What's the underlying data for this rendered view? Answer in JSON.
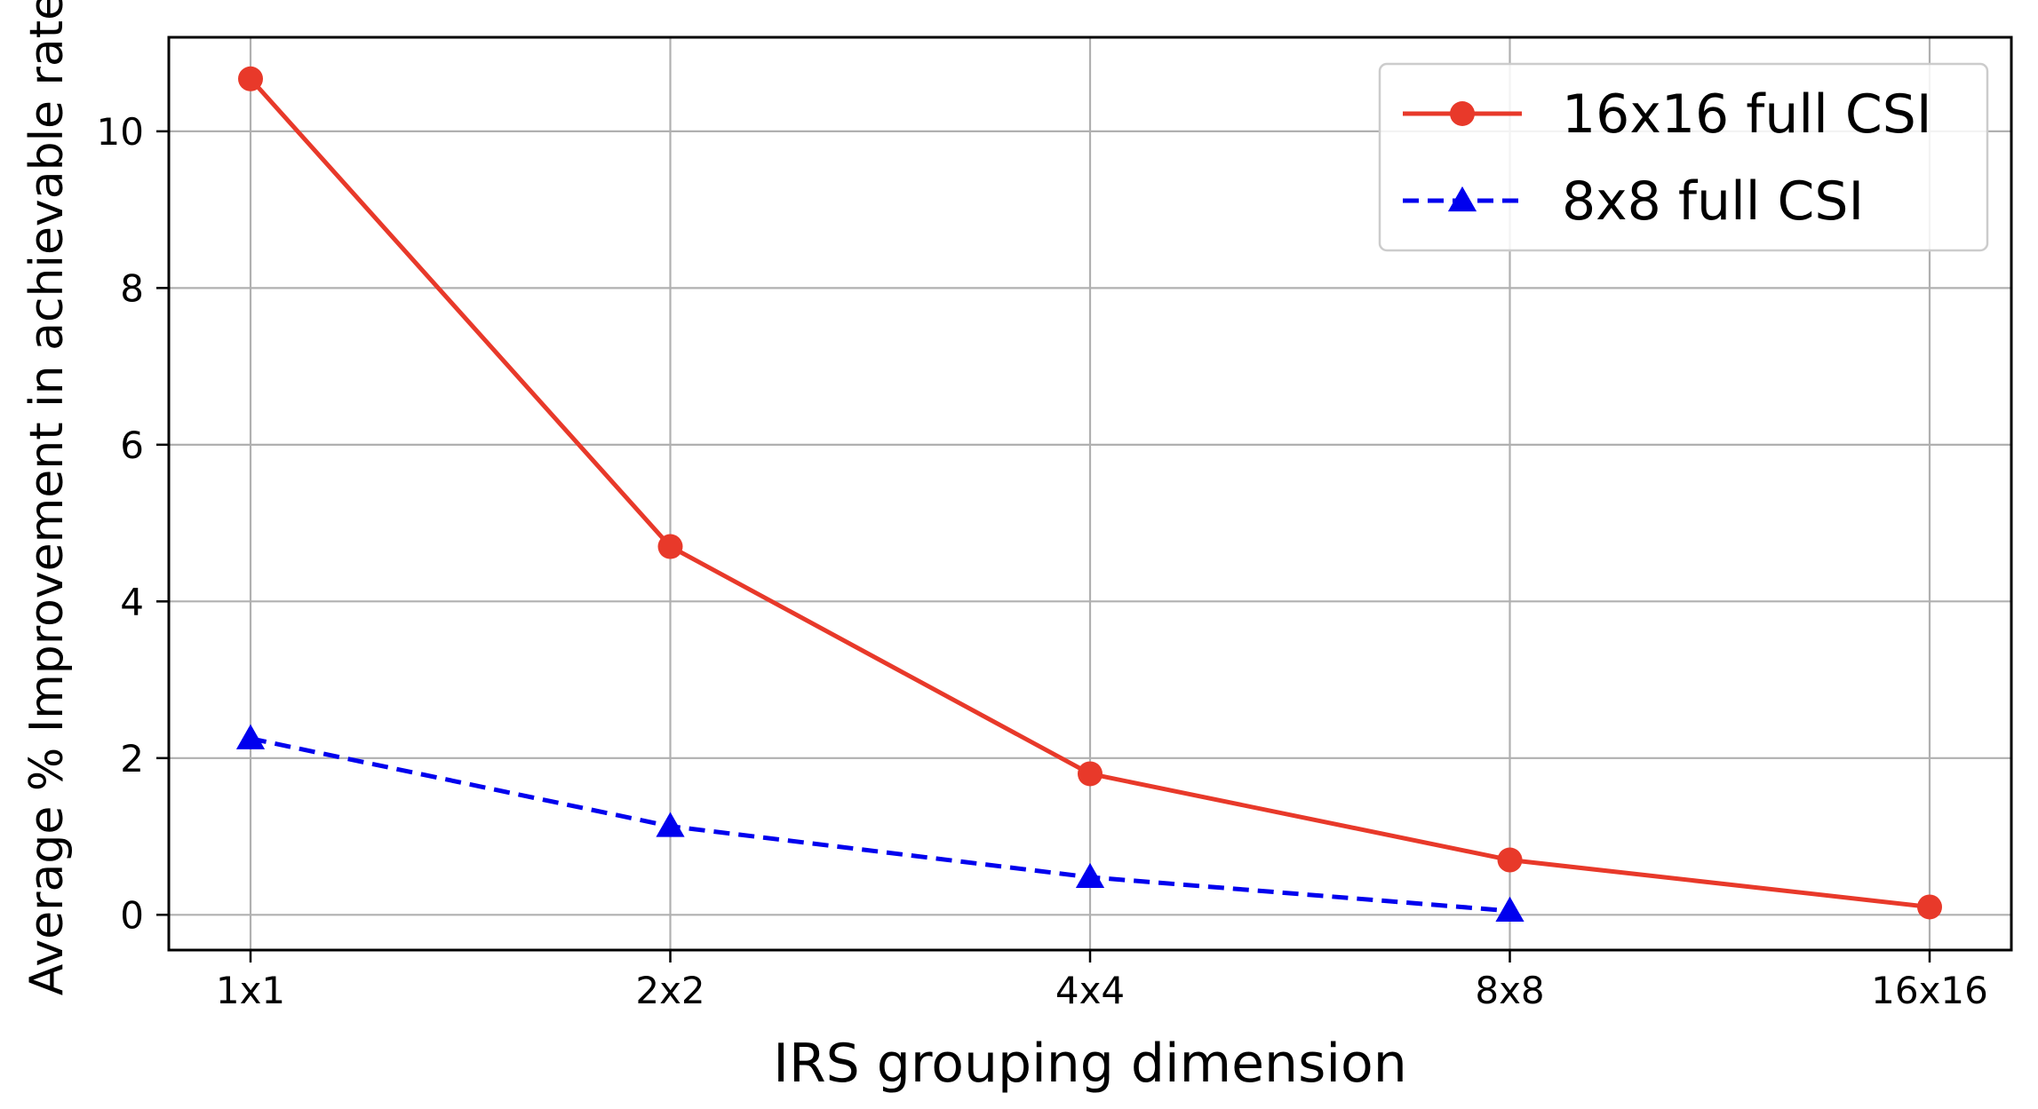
{
  "chart_data": {
    "type": "line",
    "title": "",
    "xlabel": "IRS grouping dimension",
    "ylabel": "Average % Improvement in achievable rate",
    "categories": [
      "1x1",
      "2x2",
      "4x4",
      "8x8",
      "16x16"
    ],
    "ylim": [
      -0.45,
      11.2
    ],
    "yticks": [
      0,
      2,
      4,
      6,
      8,
      10
    ],
    "grid": true,
    "legend_position": "top-right",
    "series": [
      {
        "name": "16x16 full CSI",
        "values": [
          10.67,
          4.7,
          1.8,
          0.7,
          0.1
        ],
        "color": "#e8392a",
        "line_style": "solid",
        "marker": "circle"
      },
      {
        "name": "8x8 full CSI",
        "values": [
          2.25,
          1.13,
          0.48,
          0.05,
          null
        ],
        "color": "#0000ee",
        "line_style": "dashed",
        "marker": "triangle"
      }
    ]
  }
}
